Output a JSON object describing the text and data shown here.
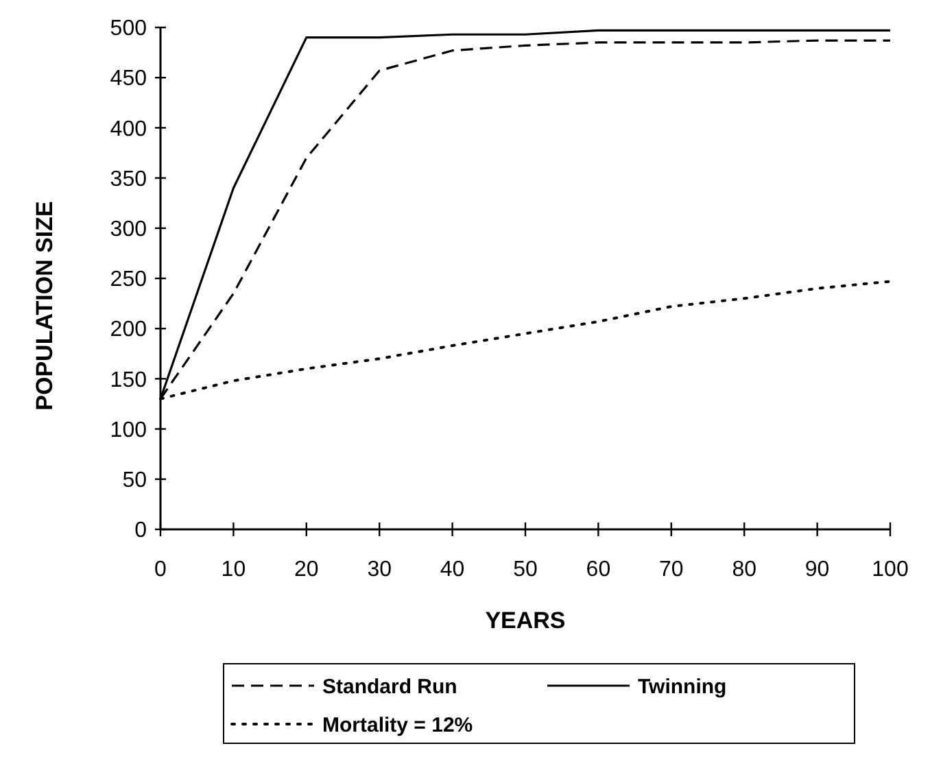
{
  "chart_data": {
    "type": "line",
    "xlabel": "YEARS",
    "ylabel": "POPULATION SIZE",
    "x": [
      0,
      10,
      20,
      30,
      40,
      50,
      60,
      70,
      80,
      90,
      100
    ],
    "xlim": [
      0,
      100
    ],
    "xticks": [
      0,
      10,
      20,
      30,
      40,
      50,
      60,
      70,
      80,
      90,
      100
    ],
    "ylim": [
      0,
      500
    ],
    "yticks": [
      0,
      50,
      100,
      150,
      200,
      250,
      300,
      350,
      400,
      450,
      500
    ],
    "grid": false,
    "legend": "bottom",
    "marker": "none",
    "series": [
      {
        "name": "Standard Run",
        "color": "#000000",
        "line_style": "dashed",
        "values": [
          130,
          235,
          370,
          457,
          477,
          482,
          485,
          485,
          485,
          487,
          487
        ]
      },
      {
        "name": "Twinning",
        "color": "#000000",
        "line_style": "solid",
        "values": [
          130,
          340,
          490,
          490,
          493,
          493,
          497,
          497,
          497,
          497,
          497
        ]
      },
      {
        "name": "Mortality = 12%",
        "color": "#000000",
        "line_style": "dotted",
        "values": [
          130,
          148,
          160,
          170,
          183,
          195,
          207,
          222,
          230,
          240,
          247
        ]
      }
    ]
  }
}
